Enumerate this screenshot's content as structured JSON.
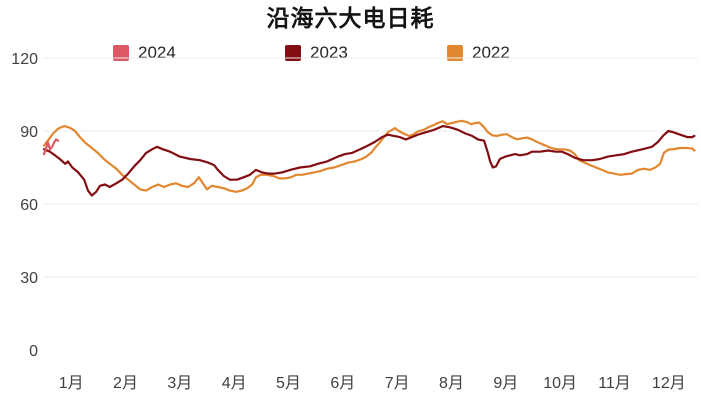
{
  "chart_data": {
    "type": "line",
    "title": "沿海六大电日耗",
    "legend_position": "top",
    "grid": "horizontal",
    "x_axis": {
      "categories": [
        "1月",
        "2月",
        "3月",
        "4月",
        "5月",
        "6月",
        "7月",
        "8月",
        "9月",
        "10月",
        "11月",
        "12月"
      ],
      "unit": "month"
    },
    "y_axis": {
      "min": 0,
      "max": 120,
      "ticks": [
        0,
        30,
        60,
        90,
        120
      ]
    },
    "series": [
      {
        "name": "2024",
        "color": "#dd5764",
        "points": [
          [
            1.0,
            80.5
          ],
          [
            1.04,
            83
          ],
          [
            1.07,
            85.4
          ],
          [
            1.11,
            82.5
          ],
          [
            1.15,
            83.5
          ],
          [
            1.18,
            85
          ],
          [
            1.22,
            86.5
          ],
          [
            1.26,
            86
          ]
        ]
      },
      {
        "name": "2023",
        "color": "#820d12",
        "points": [
          [
            1.0,
            82.5
          ],
          [
            1.11,
            81.5
          ],
          [
            1.2,
            80
          ],
          [
            1.29,
            78.5
          ],
          [
            1.39,
            76.5
          ],
          [
            1.44,
            77.5
          ],
          [
            1.52,
            75
          ],
          [
            1.63,
            73
          ],
          [
            1.74,
            70
          ],
          [
            1.81,
            65.5
          ],
          [
            1.88,
            63.5
          ],
          [
            1.96,
            65
          ],
          [
            2.03,
            67.5
          ],
          [
            2.12,
            68
          ],
          [
            2.21,
            67
          ],
          [
            2.33,
            68.5
          ],
          [
            2.44,
            70
          ],
          [
            2.55,
            72.5
          ],
          [
            2.66,
            75.5
          ],
          [
            2.77,
            78
          ],
          [
            2.88,
            81
          ],
          [
            2.99,
            82.5
          ],
          [
            3.08,
            83.5
          ],
          [
            3.19,
            82.5
          ],
          [
            3.32,
            81.5
          ],
          [
            3.5,
            79.5
          ],
          [
            3.69,
            78.5
          ],
          [
            3.87,
            78
          ],
          [
            4.02,
            77
          ],
          [
            4.13,
            76
          ],
          [
            4.2,
            74
          ],
          [
            4.31,
            71.5
          ],
          [
            4.42,
            70
          ],
          [
            4.55,
            70
          ],
          [
            4.68,
            71
          ],
          [
            4.79,
            72
          ],
          [
            4.9,
            74
          ],
          [
            5.01,
            73
          ],
          [
            5.12,
            72.5
          ],
          [
            5.25,
            72.5
          ],
          [
            5.38,
            73
          ],
          [
            5.53,
            74
          ],
          [
            5.71,
            75
          ],
          [
            5.9,
            75.5
          ],
          [
            6.04,
            76.5
          ],
          [
            6.21,
            77.5
          ],
          [
            6.41,
            79.5
          ],
          [
            6.54,
            80.5
          ],
          [
            6.67,
            81
          ],
          [
            6.82,
            82.5
          ],
          [
            6.96,
            84
          ],
          [
            7.09,
            85.5
          ],
          [
            7.22,
            87.5
          ],
          [
            7.33,
            88.5
          ],
          [
            7.44,
            88
          ],
          [
            7.55,
            87.5
          ],
          [
            7.66,
            86.5
          ],
          [
            7.77,
            87.5
          ],
          [
            7.88,
            88.5
          ],
          [
            8.03,
            89.5
          ],
          [
            8.18,
            90.5
          ],
          [
            8.34,
            92
          ],
          [
            8.47,
            91.5
          ],
          [
            8.62,
            90.5
          ],
          [
            8.75,
            89
          ],
          [
            8.88,
            88
          ],
          [
            8.99,
            86.5
          ],
          [
            9.1,
            86
          ],
          [
            9.17,
            81
          ],
          [
            9.21,
            77.5
          ],
          [
            9.26,
            75
          ],
          [
            9.32,
            75.5
          ],
          [
            9.39,
            78.5
          ],
          [
            9.49,
            79.5
          ],
          [
            9.58,
            80
          ],
          [
            9.67,
            80.5
          ],
          [
            9.76,
            80
          ],
          [
            9.89,
            80.5
          ],
          [
            9.98,
            81.5
          ],
          [
            10.13,
            81.5
          ],
          [
            10.28,
            82
          ],
          [
            10.42,
            81.5
          ],
          [
            10.53,
            81.5
          ],
          [
            10.64,
            80.5
          ],
          [
            10.77,
            79
          ],
          [
            10.92,
            78
          ],
          [
            11.09,
            78
          ],
          [
            11.23,
            78.5
          ],
          [
            11.38,
            79.5
          ],
          [
            11.53,
            80
          ],
          [
            11.68,
            80.5
          ],
          [
            11.82,
            81.5
          ],
          [
            12.01,
            82.5
          ],
          [
            12.19,
            83.5
          ],
          [
            12.3,
            85.5
          ],
          [
            12.39,
            88
          ],
          [
            12.49,
            90
          ],
          [
            12.58,
            89.5
          ],
          [
            12.71,
            88.5
          ],
          [
            12.84,
            87.5
          ],
          [
            12.93,
            87.5
          ],
          [
            12.97,
            88
          ]
        ]
      },
      {
        "name": "2022",
        "color": "#e2872f",
        "points": [
          [
            1.0,
            84
          ],
          [
            1.07,
            86
          ],
          [
            1.17,
            89
          ],
          [
            1.26,
            91
          ],
          [
            1.37,
            92
          ],
          [
            1.48,
            91.3
          ],
          [
            1.57,
            90
          ],
          [
            1.66,
            87.5
          ],
          [
            1.77,
            85
          ],
          [
            1.88,
            83
          ],
          [
            1.99,
            81
          ],
          [
            2.1,
            78.5
          ],
          [
            2.21,
            76.5
          ],
          [
            2.33,
            74.5
          ],
          [
            2.44,
            72
          ],
          [
            2.55,
            70
          ],
          [
            2.66,
            68
          ],
          [
            2.77,
            66
          ],
          [
            2.88,
            65.5
          ],
          [
            2.99,
            67
          ],
          [
            3.1,
            68
          ],
          [
            3.21,
            67
          ],
          [
            3.32,
            68
          ],
          [
            3.43,
            68.5
          ],
          [
            3.54,
            67.5
          ],
          [
            3.65,
            67
          ],
          [
            3.76,
            68.5
          ],
          [
            3.85,
            71
          ],
          [
            3.94,
            68
          ],
          [
            4.0,
            66
          ],
          [
            4.09,
            67.5
          ],
          [
            4.2,
            67
          ],
          [
            4.31,
            66.5
          ],
          [
            4.42,
            65.5
          ],
          [
            4.53,
            65
          ],
          [
            4.64,
            65.5
          ],
          [
            4.74,
            66.5
          ],
          [
            4.83,
            68
          ],
          [
            4.9,
            71
          ],
          [
            4.99,
            72
          ],
          [
            5.1,
            72
          ],
          [
            5.22,
            71.5
          ],
          [
            5.33,
            70.5
          ],
          [
            5.44,
            70.5
          ],
          [
            5.55,
            71
          ],
          [
            5.64,
            72
          ],
          [
            5.75,
            72
          ],
          [
            5.86,
            72.5
          ],
          [
            5.97,
            73
          ],
          [
            6.08,
            73.5
          ],
          [
            6.21,
            74.5
          ],
          [
            6.34,
            75
          ],
          [
            6.47,
            76
          ],
          [
            6.6,
            77
          ],
          [
            6.72,
            77.5
          ],
          [
            6.85,
            78.5
          ],
          [
            6.93,
            79.5
          ],
          [
            7.02,
            81
          ],
          [
            7.09,
            83
          ],
          [
            7.17,
            85
          ],
          [
            7.24,
            87
          ],
          [
            7.33,
            89.5
          ],
          [
            7.41,
            90.5
          ],
          [
            7.46,
            91.2
          ],
          [
            7.53,
            90
          ],
          [
            7.63,
            88.8
          ],
          [
            7.72,
            88
          ],
          [
            7.79,
            88.5
          ],
          [
            7.88,
            89.8
          ],
          [
            7.99,
            90.5
          ],
          [
            8.09,
            91.7
          ],
          [
            8.18,
            92.5
          ],
          [
            8.25,
            93.3
          ],
          [
            8.34,
            94
          ],
          [
            8.42,
            92.8
          ],
          [
            8.51,
            93.3
          ],
          [
            8.6,
            93.8
          ],
          [
            8.69,
            94.2
          ],
          [
            8.79,
            93.6
          ],
          [
            8.86,
            92.8
          ],
          [
            8.93,
            93.2
          ],
          [
            9.01,
            93.5
          ],
          [
            9.1,
            91.5
          ],
          [
            9.17,
            89.5
          ],
          [
            9.25,
            88.2
          ],
          [
            9.34,
            88
          ],
          [
            9.43,
            88.5
          ],
          [
            9.52,
            88.7
          ],
          [
            9.61,
            87.5
          ],
          [
            9.71,
            86.6
          ],
          [
            9.8,
            87
          ],
          [
            9.89,
            87.3
          ],
          [
            9.98,
            86.6
          ],
          [
            10.07,
            85.5
          ],
          [
            10.17,
            84.6
          ],
          [
            10.28,
            83.5
          ],
          [
            10.37,
            82.8
          ],
          [
            10.46,
            82.5
          ],
          [
            10.57,
            82.5
          ],
          [
            10.68,
            82
          ],
          [
            10.77,
            80.5
          ],
          [
            10.85,
            78
          ],
          [
            11.05,
            76
          ],
          [
            11.16,
            75
          ],
          [
            11.27,
            74
          ],
          [
            11.38,
            73
          ],
          [
            11.49,
            72.5
          ],
          [
            11.6,
            72
          ],
          [
            11.71,
            72.3
          ],
          [
            11.82,
            72.5
          ],
          [
            11.93,
            74
          ],
          [
            12.04,
            74.5
          ],
          [
            12.15,
            74
          ],
          [
            12.25,
            75
          ],
          [
            12.34,
            76.5
          ],
          [
            12.41,
            81
          ],
          [
            12.49,
            82.3
          ],
          [
            12.6,
            82.6
          ],
          [
            12.71,
            83
          ],
          [
            12.82,
            83
          ],
          [
            12.93,
            82.8
          ],
          [
            12.97,
            82
          ]
        ]
      }
    ],
    "legend_items": [
      "2024",
      "2023",
      "2022"
    ]
  }
}
